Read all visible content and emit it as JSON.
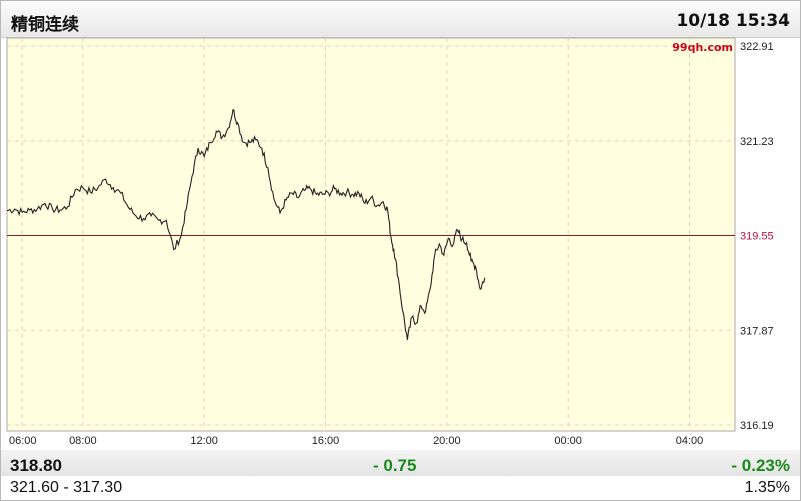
{
  "header": {
    "title": "精铜连续",
    "datetime": "10/18 15:34"
  },
  "watermark": "99qh.com",
  "footer": {
    "price": "318.80",
    "change": "- 0.75",
    "change_pct": "- 0.23%",
    "range": "321.60 - 317.30",
    "amplitude": "1.35%"
  },
  "colors": {
    "plot_bg": "#ffffe0",
    "line": "#222222",
    "ref_line": "#8b1a2b",
    "grid": "#d8d8c0",
    "down": "#1a8a1a",
    "ref_label": "#c0103c",
    "watermark": "#d4001a"
  },
  "chart_data": {
    "type": "line",
    "title": "",
    "xlabel": "",
    "ylabel": "",
    "x_ticks": [
      "06:00",
      "08:00",
      "12:00",
      "16:00",
      "20:00",
      "00:00",
      "04:00"
    ],
    "y_ticks": [
      "322.91",
      "321.23",
      "319.55",
      "317.87",
      "316.19"
    ],
    "ylim": [
      316.19,
      322.91
    ],
    "x_range_hours": [
      5.5,
      29.5
    ],
    "reference_value": 319.55,
    "grid": true,
    "series": [
      {
        "values": [
          [
            5.5,
            319.99
          ],
          [
            5.75,
            320.02
          ],
          [
            6.0,
            319.96
          ],
          [
            6.25,
            320.0
          ],
          [
            6.5,
            320.02
          ],
          [
            6.75,
            320.12
          ],
          [
            7.0,
            320.02
          ],
          [
            7.25,
            320.0
          ],
          [
            7.5,
            320.06
          ],
          [
            7.75,
            320.36
          ],
          [
            8.0,
            320.4
          ],
          [
            8.25,
            320.32
          ],
          [
            8.5,
            320.4
          ],
          [
            8.75,
            320.55
          ],
          [
            9.0,
            320.4
          ],
          [
            9.25,
            320.3
          ],
          [
            9.5,
            320.05
          ],
          [
            9.75,
            319.9
          ],
          [
            10.0,
            319.85
          ],
          [
            10.25,
            319.9
          ],
          [
            10.5,
            319.82
          ],
          [
            10.75,
            319.82
          ],
          [
            11.0,
            319.3
          ],
          [
            11.25,
            319.56
          ],
          [
            11.4,
            320.0
          ],
          [
            11.6,
            320.6
          ],
          [
            11.8,
            321.1
          ],
          [
            12.0,
            320.95
          ],
          [
            12.2,
            321.2
          ],
          [
            12.4,
            321.4
          ],
          [
            12.6,
            321.3
          ],
          [
            12.8,
            321.46
          ],
          [
            12.95,
            321.78
          ],
          [
            13.1,
            321.55
          ],
          [
            13.3,
            321.2
          ],
          [
            13.5,
            321.2
          ],
          [
            13.7,
            321.25
          ],
          [
            13.9,
            321.1
          ],
          [
            14.1,
            320.75
          ],
          [
            14.3,
            320.2
          ],
          [
            14.5,
            319.95
          ],
          [
            14.7,
            320.18
          ],
          [
            14.9,
            320.3
          ],
          [
            15.1,
            320.22
          ],
          [
            15.3,
            320.35
          ],
          [
            15.5,
            320.38
          ],
          [
            15.7,
            320.28
          ],
          [
            15.9,
            320.28
          ],
          [
            16.1,
            320.3
          ],
          [
            16.3,
            320.38
          ],
          [
            16.5,
            320.3
          ],
          [
            16.7,
            320.32
          ],
          [
            16.9,
            320.28
          ],
          [
            17.1,
            320.3
          ],
          [
            17.3,
            320.12
          ],
          [
            17.5,
            320.22
          ],
          [
            17.7,
            320.08
          ],
          [
            17.9,
            320.15
          ],
          [
            18.05,
            320.0
          ],
          [
            18.15,
            319.55
          ],
          [
            18.25,
            319.3
          ],
          [
            18.4,
            318.8
          ],
          [
            18.55,
            318.2
          ],
          [
            18.7,
            317.7
          ],
          [
            18.85,
            318.1
          ],
          [
            19.0,
            318.0
          ],
          [
            19.15,
            318.3
          ],
          [
            19.3,
            318.2
          ],
          [
            19.45,
            318.6
          ],
          [
            19.6,
            319.2
          ],
          [
            19.75,
            319.4
          ],
          [
            19.9,
            319.2
          ],
          [
            20.05,
            319.5
          ],
          [
            20.2,
            319.38
          ],
          [
            20.35,
            319.65
          ],
          [
            20.5,
            319.48
          ],
          [
            20.65,
            319.42
          ],
          [
            20.8,
            319.1
          ],
          [
            20.95,
            319.0
          ],
          [
            21.1,
            318.6
          ],
          [
            21.25,
            318.8
          ]
        ]
      }
    ]
  }
}
